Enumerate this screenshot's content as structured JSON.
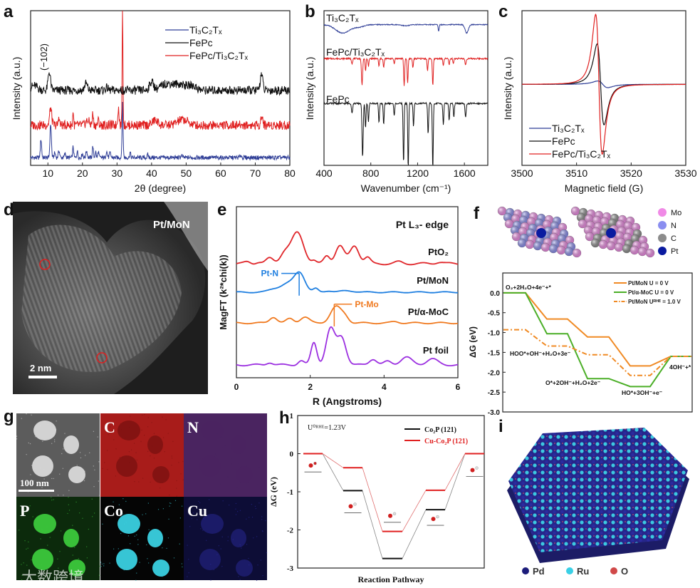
{
  "panel_letters": [
    "a",
    "b",
    "c",
    "d",
    "e",
    "f",
    "g",
    "h",
    "i"
  ],
  "chart_data": [
    {
      "panel": "a",
      "type": "line",
      "title": "",
      "xlabel": "2θ (degree)",
      "ylabel": "Intensity (a.u.)",
      "xlim": [
        5,
        80
      ],
      "ylim": [
        0,
        10
      ],
      "xticks": [
        10,
        20,
        30,
        40,
        50,
        60,
        70,
        80
      ],
      "annotation": "(−102)",
      "legend_position": "top-right",
      "series": [
        {
          "name": "Ti₃C₂Tₓ",
          "color": "#2e3d96",
          "baseline": 0.5,
          "noise": 0.14,
          "peaks": [
            [
              8,
              1.2,
              0.18
            ],
            [
              10.8,
              2.2,
              0.2
            ],
            [
              12,
              0.3,
              0.2
            ],
            [
              13.2,
              0.45,
              0.2
            ],
            [
              15,
              0.25,
              0.2
            ],
            [
              17.3,
              0.7,
              0.15
            ],
            [
              18.5,
              0.45,
              0.15
            ],
            [
              20,
              0.25,
              0.2
            ],
            [
              21.2,
              0.45,
              0.2
            ],
            [
              23,
              0.75,
              0.15
            ],
            [
              23.8,
              0.4,
              0.15
            ],
            [
              24.6,
              0.4,
              0.15
            ],
            [
              27,
              0.4,
              0.2
            ],
            [
              28,
              0.3,
              0.2
            ],
            [
              31.6,
              3.5,
              0.15
            ],
            [
              33.8,
              0.35,
              0.15
            ],
            [
              38.9,
              0.2,
              0.15
            ],
            [
              48.7,
              0.15,
              0.2
            ],
            [
              65.8,
              0.15,
              0.2
            ]
          ]
        },
        {
          "name": "FePc",
          "color": "#111111",
          "baseline": 4.85,
          "noise": 0.28,
          "peaks": [
            [
              6,
              0.3,
              1.0
            ],
            [
              10.4,
              1.2,
              0.35
            ],
            [
              21,
              0.45,
              0.4
            ],
            [
              27,
              0.15,
              0.4
            ],
            [
              40,
              0.55,
              0.6
            ],
            [
              44,
              0.3,
              1.5
            ],
            [
              48,
              0.4,
              2.5
            ],
            [
              52,
              0.2,
              1
            ],
            [
              71.8,
              1.1,
              0.35
            ]
          ]
        },
        {
          "name": "FePc/Ti₃C₂Tₓ",
          "color": "#e02020",
          "baseline": 2.6,
          "noise": 0.3,
          "peaks": [
            [
              10.8,
              1.1,
              0.3
            ],
            [
              13.2,
              0.6,
              0.15
            ],
            [
              17.3,
              0.95,
              0.12
            ],
            [
              21.5,
              0.3,
              0.5
            ],
            [
              23,
              0.75,
              0.15
            ],
            [
              24.6,
              0.3,
              0.2
            ],
            [
              30.4,
              1.1,
              0.2
            ],
            [
              31.6,
              7.6,
              0.12
            ],
            [
              41,
              0.3,
              0.8
            ],
            [
              49,
              0.35,
              1.5
            ],
            [
              71.9,
              0.55,
              0.3
            ]
          ]
        }
      ]
    },
    {
      "panel": "b",
      "type": "line",
      "title": "",
      "xlabel": "Wavenumber (cm⁻¹)",
      "ylabel": "Intensity (a.u.)",
      "xlim": [
        400,
        1800
      ],
      "ylim": [
        0,
        10
      ],
      "xticks": [
        400,
        800,
        1200,
        1600
      ],
      "series": [
        {
          "name": "Ti₃C₂Tₓ",
          "color": "#2e3d96",
          "baseline": 9.1,
          "noise": 0.03,
          "peaks": [
            [
              560,
              -0.55,
              60
            ],
            [
              700,
              -0.15,
              40
            ],
            [
              1380,
              -0.45,
              4
            ],
            [
              1620,
              -0.55,
              14
            ],
            [
              1100,
              -0.08,
              30
            ]
          ]
        },
        {
          "name": "FePc/Ti₃C₂Tₓ",
          "color": "#e02020",
          "baseline": 6.9,
          "noise": 0.05,
          "peaks": [
            [
              640,
              -0.3,
              5
            ],
            [
              725,
              -1.7,
              5
            ],
            [
              755,
              -0.8,
              4
            ],
            [
              780,
              -0.5,
              4
            ],
            [
              870,
              -0.5,
              4
            ],
            [
              910,
              -0.6,
              4
            ],
            [
              1000,
              -0.3,
              4
            ],
            [
              1085,
              -1.8,
              4
            ],
            [
              1115,
              -1.6,
              4
            ],
            [
              1160,
              -0.6,
              4
            ],
            [
              1285,
              -0.8,
              4
            ],
            [
              1330,
              -1.8,
              4
            ],
            [
              1420,
              -0.5,
              4
            ],
            [
              1470,
              -0.4,
              4
            ],
            [
              1505,
              -0.3,
              4
            ],
            [
              1610,
              -0.4,
              5
            ]
          ]
        },
        {
          "name": "FePc",
          "color": "#111111",
          "baseline": 4.0,
          "noise": 0.05,
          "peaks": [
            [
              640,
              -0.6,
              5
            ],
            [
              730,
              -3.5,
              5
            ],
            [
              755,
              -1.6,
              4
            ],
            [
              780,
              -1.2,
              4
            ],
            [
              870,
              -1.2,
              4
            ],
            [
              910,
              -1.4,
              4
            ],
            [
              1000,
              -0.8,
              4
            ],
            [
              1080,
              -3.9,
              4
            ],
            [
              1120,
              -4.2,
              4
            ],
            [
              1165,
              -1.5,
              4
            ],
            [
              1290,
              -2.0,
              4
            ],
            [
              1330,
              -4.3,
              4
            ],
            [
              1420,
              -1.4,
              4
            ],
            [
              1470,
              -1.1,
              4
            ],
            [
              1510,
              -0.9,
              4
            ],
            [
              1610,
              -0.9,
              5
            ]
          ]
        }
      ]
    },
    {
      "panel": "c",
      "type": "line",
      "title": "",
      "xlabel": "Magnetic field (G)",
      "ylabel": "Intensity (a.u.)",
      "xlim": [
        3500,
        3530
      ],
      "ylim": [
        -1.1,
        1.0
      ],
      "xticks": [
        3500,
        3510,
        3520,
        3530
      ],
      "legend_position": "bottom-left",
      "series": [
        {
          "name": "Ti₃C₂Tₓ",
          "color": "#2e3d96",
          "center": 3514.8,
          "width": 1.6,
          "amplitude": 0.045
        },
        {
          "name": "FePc",
          "color": "#111111",
          "center": 3514.4,
          "width": 1.1,
          "amplitude": 0.55
        },
        {
          "name": "FePc/Ti₃C₂Tₓ",
          "color": "#e02020",
          "center": 3514.1,
          "width": 1.04,
          "amplitude": 0.95
        }
      ]
    },
    {
      "panel": "e",
      "type": "line",
      "title": "Pt L₃- edge",
      "xlabel": "R (Angstroms)",
      "ylabel": "MagFT (k²*chi(k))",
      "xlim": [
        0,
        6
      ],
      "ylim": [
        0,
        10
      ],
      "xticks": [
        0,
        2,
        4,
        6
      ],
      "series": [
        {
          "name": "PtO₂",
          "color": "#e0262a",
          "baseline": 6.67,
          "noise": 0.06,
          "peaks": [
            [
              0.3,
              0.1,
              0.08
            ],
            [
              0.6,
              0.1,
              0.08
            ],
            [
              0.9,
              0.3,
              0.1
            ],
            [
              1.3,
              0.6,
              0.12
            ],
            [
              1.65,
              1.8,
              0.17
            ],
            [
              2.1,
              0.15,
              0.06
            ],
            [
              2.45,
              0.45,
              0.08
            ],
            [
              2.8,
              1.05,
              0.12
            ],
            [
              3.2,
              1.05,
              0.12
            ],
            [
              3.55,
              0.35,
              0.08
            ],
            [
              4.4,
              0.1,
              0.1
            ],
            [
              5.5,
              0.1,
              0.1
            ]
          ]
        },
        {
          "name": "Pt/MoN",
          "color": "#1f7fe0",
          "baseline": 5.0,
          "noise": 0.03,
          "peaks": [
            [
              1.0,
              0.15,
              0.15
            ],
            [
              1.4,
              0.5,
              0.2
            ],
            [
              1.72,
              1.05,
              0.14
            ],
            [
              2.15,
              0.2,
              0.07
            ],
            [
              2.5,
              0.08,
              0.1
            ],
            [
              3.0,
              0.08,
              0.2
            ]
          ]
        },
        {
          "name": "Pt/α-MoC",
          "color": "#f07a20",
          "baseline": 3.2,
          "noise": 0.04,
          "peaks": [
            [
              1.0,
              0.35,
              0.1
            ],
            [
              1.45,
              0.25,
              0.1
            ],
            [
              1.85,
              0.35,
              0.12
            ],
            [
              2.7,
              0.95,
              0.15
            ],
            [
              2.95,
              0.3,
              0.1
            ],
            [
              4.3,
              0.08,
              0.1
            ]
          ]
        },
        {
          "name": "Pt foil",
          "color": "#9b2fe0",
          "baseline": 0.75,
          "noise": 0.05,
          "peaks": [
            [
              0.9,
              0.15,
              0.08
            ],
            [
              1.75,
              0.25,
              0.08
            ],
            [
              2.1,
              1.3,
              0.08
            ],
            [
              2.55,
              2.1,
              0.12
            ],
            [
              2.85,
              1.6,
              0.12
            ],
            [
              3.7,
              0.35,
              0.1
            ],
            [
              4.1,
              0.2,
              0.1
            ],
            [
              4.6,
              0.45,
              0.15
            ],
            [
              5.3,
              0.35,
              0.15
            ]
          ]
        }
      ],
      "annotations": [
        {
          "label": "Pt-N",
          "x": 1.7,
          "series": 1,
          "color": "#1f7fe0"
        },
        {
          "label": "Pt-Mo",
          "x": 2.65,
          "series": 2,
          "color": "#f07a20"
        }
      ]
    },
    {
      "panel": "f",
      "type": "step",
      "title": "",
      "xlabel": "",
      "ylabel": "ΔG (eV)",
      "ylim": [
        -3.0,
        0.5
      ],
      "yticks": [
        "0.0",
        "-0.5",
        "-1.0",
        "-1.5",
        "-2.0",
        "-2.5",
        "-3.0"
      ],
      "states": [
        "O₂+2H₂O+4e⁻+*",
        "HOO*+OH⁻+H₂O+3e⁻",
        "O*+2OH⁻+H₂O+2e⁻",
        "HO*+3OH⁻+e⁻",
        "4OH⁻+*"
      ],
      "legend_position": "top-right",
      "series": [
        {
          "name": "Pt/MoN   U = 0 V",
          "color": "#f08a24",
          "style": "solid",
          "values": [
            0.0,
            -0.66,
            -1.11,
            -1.84,
            -1.6
          ]
        },
        {
          "name": "Pt/α-MoC U = 0 V",
          "color": "#4caf28",
          "style": "solid",
          "values": [
            0.0,
            -1.03,
            -2.16,
            -2.36,
            -1.6
          ]
        },
        {
          "name": "Pt/MoN   Uᴿᴴᴱ = 1.0 V",
          "color": "#f08a24",
          "style": "dash-dot",
          "values": [
            -0.93,
            -1.34,
            -1.56,
            -2.08,
            -1.6
          ]
        }
      ],
      "structure_legend": [
        {
          "name": "Mo",
          "color": "#f08ae6"
        },
        {
          "name": "N",
          "color": "#8a8ef0"
        },
        {
          "name": "C",
          "color": "#8c8c8c"
        },
        {
          "name": "Pt",
          "color": "#0a1aa0"
        }
      ]
    },
    {
      "panel": "h",
      "type": "step",
      "title": "",
      "xlabel": "Reaction Pathway",
      "ylabel": "ΔG (eV)",
      "ylim": [
        -3,
        1
      ],
      "yticks": [
        "1",
        "0",
        "-1",
        "-2",
        "-3"
      ],
      "annotation": "U⁰ᴿᴴᴱ=1.23V",
      "legend_position": "top-right",
      "series": [
        {
          "name": "Co₂P (121)",
          "color": "#111111",
          "values": [
            0,
            -0.97,
            -2.75,
            -1.47,
            0
          ]
        },
        {
          "name": "Cu-Co₂P (121)",
          "color": "#e02020",
          "values": [
            0,
            -0.37,
            -2.04,
            -0.96,
            0
          ]
        }
      ],
      "adsorbate_levels": [
        -0.48,
        -1.55,
        -1.8,
        -1.88,
        -0.6
      ]
    }
  ],
  "panels": {
    "d": {
      "sample": "Pt/MoN",
      "scale_bar": "2 nm"
    },
    "g": {
      "tiles": [
        "",
        "C",
        "N",
        "P",
        "Co",
        "Cu"
      ],
      "scale_bar": "100 nm"
    },
    "i": {
      "legend": [
        {
          "name": "Pd",
          "color": "#1c1c7a"
        },
        {
          "name": "Ru",
          "color": "#3ad0e6"
        },
        {
          "name": "O",
          "color": "#d04848"
        }
      ]
    }
  },
  "watermark": "大数跨境"
}
